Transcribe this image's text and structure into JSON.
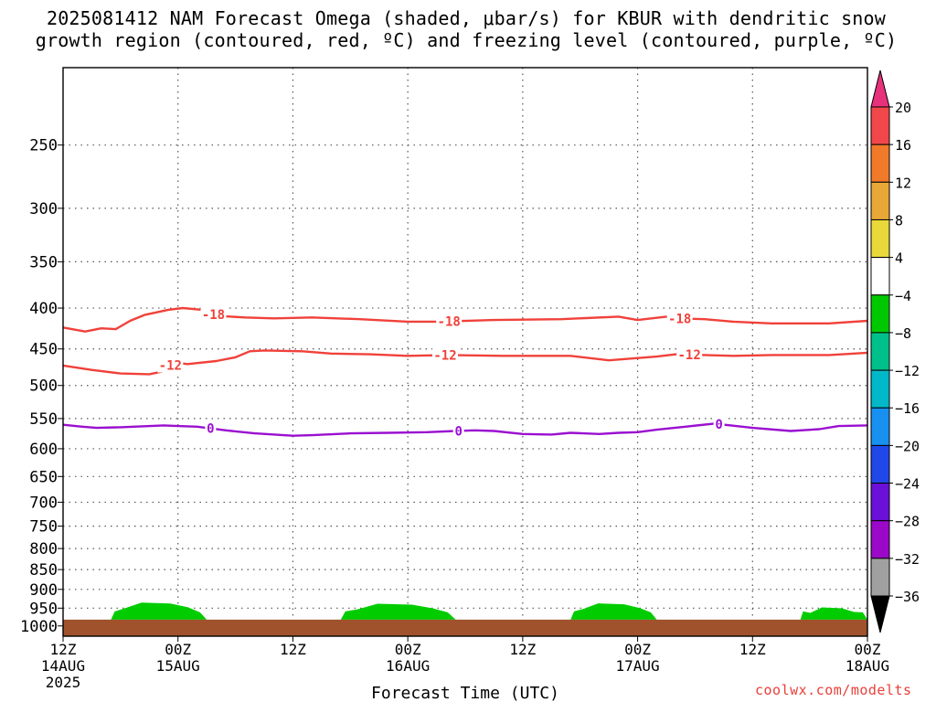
{
  "title_line1": "2025081412 NAM Forecast Omega (shaded, μbar/s) for KBUR with dendritic snow",
  "title_line2": "growth region (contoured, red, ºC) and freezing level (contoured, purple, ºC)",
  "credit": "coolwx.com/modelts",
  "chart_data": {
    "type": "time-height",
    "xlabel": "Forecast Time (UTC)",
    "x_range_hours": [
      0,
      84
    ],
    "x_ticks": [
      {
        "hour": 0,
        "label1": "12Z",
        "label2": "14AUG",
        "label3": "2025"
      },
      {
        "hour": 12,
        "label1": "00Z",
        "label2": "15AUG",
        "label3": ""
      },
      {
        "hour": 24,
        "label1": "12Z",
        "label2": "",
        "label3": ""
      },
      {
        "hour": 36,
        "label1": "00Z",
        "label2": "16AUG",
        "label3": ""
      },
      {
        "hour": 48,
        "label1": "12Z",
        "label2": "",
        "label3": ""
      },
      {
        "hour": 60,
        "label1": "00Z",
        "label2": "17AUG",
        "label3": ""
      },
      {
        "hour": 72,
        "label1": "12Z",
        "label2": "",
        "label3": ""
      },
      {
        "hour": 84,
        "label1": "00Z",
        "label2": "18AUG",
        "label3": ""
      }
    ],
    "y_axis": "pressure (hPa), inverted",
    "y_range_hpa": [
      200,
      1030
    ],
    "y_ticks": [
      250,
      300,
      350,
      400,
      450,
      500,
      550,
      600,
      650,
      700,
      750,
      800,
      850,
      900,
      950,
      1000
    ],
    "grid": true,
    "surface_pressure_hpa": 982,
    "surface_color": "#a0522d",
    "contours": [
      {
        "name": "-18",
        "color": "#f0413a",
        "points": [
          [
            0,
            423
          ],
          [
            2.3,
            428
          ],
          [
            4,
            424
          ],
          [
            5.5,
            425
          ],
          [
            7,
            415
          ],
          [
            8.5,
            408
          ],
          [
            11,
            402
          ],
          [
            12.5,
            400
          ],
          [
            14.5,
            402
          ],
          [
            16,
            409
          ],
          [
            19,
            411
          ],
          [
            22,
            412
          ],
          [
            26,
            411
          ],
          [
            31,
            413
          ],
          [
            36,
            416
          ],
          [
            39,
            416
          ],
          [
            45,
            414
          ],
          [
            52,
            413
          ],
          [
            58,
            410
          ],
          [
            60,
            414
          ],
          [
            63,
            410
          ],
          [
            64,
            412
          ],
          [
            67,
            413
          ],
          [
            70,
            416
          ],
          [
            74,
            418
          ],
          [
            80,
            418
          ],
          [
            84,
            415
          ]
        ],
        "labels": [
          {
            "hour": 15.7,
            "text": "-18"
          },
          {
            "hour": 40.3,
            "text": "-18"
          },
          {
            "hour": 64.4,
            "text": "-18"
          }
        ]
      },
      {
        "name": "-12",
        "color": "#f0413a",
        "points": [
          [
            0,
            472
          ],
          [
            3,
            478
          ],
          [
            6,
            483
          ],
          [
            9,
            484
          ],
          [
            10.5,
            480
          ],
          [
            11.5,
            468
          ],
          [
            13,
            470
          ],
          [
            16,
            466
          ],
          [
            18,
            461
          ],
          [
            19.5,
            453
          ],
          [
            21,
            452
          ],
          [
            25,
            453
          ],
          [
            28,
            456
          ],
          [
            32,
            457
          ],
          [
            36,
            459
          ],
          [
            40,
            458
          ],
          [
            46,
            459
          ],
          [
            53,
            459
          ],
          [
            57,
            465
          ],
          [
            62,
            460
          ],
          [
            64,
            457
          ],
          [
            67,
            458
          ],
          [
            70,
            459
          ],
          [
            74,
            458
          ],
          [
            80,
            458
          ],
          [
            84,
            455
          ]
        ],
        "labels": [
          {
            "hour": 11.2,
            "text": "-12"
          },
          {
            "hour": 39.9,
            "text": "-12"
          },
          {
            "hour": 65.4,
            "text": "-12"
          }
        ]
      },
      {
        "name": "0",
        "color": "#9a0fd0",
        "points": [
          [
            0,
            560
          ],
          [
            2,
            563
          ],
          [
            3.5,
            565
          ],
          [
            6,
            564
          ],
          [
            10.5,
            561
          ],
          [
            12,
            562
          ],
          [
            14,
            563
          ],
          [
            17,
            569
          ],
          [
            20,
            574
          ],
          [
            24,
            578
          ],
          [
            26,
            577
          ],
          [
            30,
            574
          ],
          [
            34,
            573
          ],
          [
            38,
            572
          ],
          [
            41,
            570
          ],
          [
            43,
            569
          ],
          [
            45,
            570
          ],
          [
            48,
            575
          ],
          [
            51,
            576
          ],
          [
            53,
            573
          ],
          [
            56,
            575
          ],
          [
            58,
            573
          ],
          [
            60,
            572
          ],
          [
            62,
            568
          ],
          [
            65,
            563
          ],
          [
            68,
            558
          ],
          [
            72,
            565
          ],
          [
            76,
            570
          ],
          [
            79,
            567
          ],
          [
            81,
            562
          ],
          [
            84,
            561
          ]
        ],
        "labels": [
          {
            "hour": 15.4,
            "text": "0"
          },
          {
            "hour": 41.3,
            "text": "0"
          },
          {
            "hour": 68.5,
            "text": "0"
          }
        ]
      }
    ],
    "omega_shaded_regions": [
      {
        "value_band": [
          -8,
          -4
        ],
        "color": "#00cc00",
        "hour_range": [
          5,
          15
        ],
        "peak_hpa": 935
      },
      {
        "value_band": [
          -8,
          -4
        ],
        "color": "#00cc00",
        "hour_range": [
          29,
          41
        ],
        "peak_hpa": 938
      },
      {
        "value_band": [
          -8,
          -4
        ],
        "color": "#00cc00",
        "hour_range": [
          53,
          62
        ],
        "peak_hpa": 937
      },
      {
        "value_band": [
          -8,
          -4
        ],
        "color": "#00cc00",
        "hour_range": [
          77,
          84
        ],
        "peak_hpa": 948
      }
    ],
    "colorbar": {
      "labels": [
        "20",
        "16",
        "12",
        "8",
        "4",
        "−4",
        "−8",
        "−12",
        "−16",
        "−20",
        "−24",
        "−28",
        "−32",
        "−36"
      ],
      "colors": [
        "#e8317c",
        "#f2474a",
        "#f07a2a",
        "#e8a838",
        "#e8d83a",
        "#ffffff",
        "#00c800",
        "#00c08a",
        "#00b8c8",
        "#1890f0",
        "#2048e8",
        "#6a10d8",
        "#9a08c8",
        "#a0a0a0",
        "#000000"
      ]
    }
  }
}
